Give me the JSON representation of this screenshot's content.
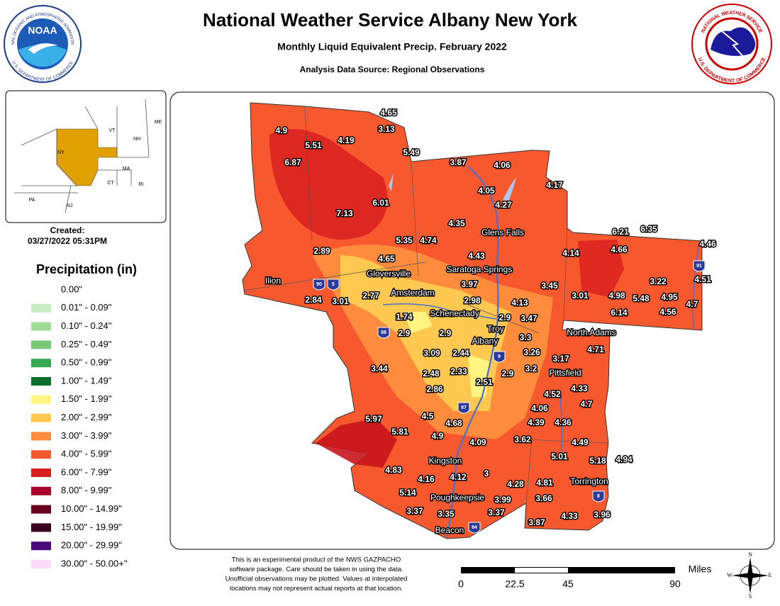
{
  "header": {
    "title": "National Weather Service Albany New York",
    "subtitle": "Monthly Liquid Equivalent Precip. February 2022",
    "source": "Analysis Data Source: Regional Observations"
  },
  "logos": {
    "noaa": "NOAA",
    "noaa_ring_top": "NATIONAL OCEANIC AND ATMOSPHERIC ADMINISTRATION",
    "noaa_ring_bottom": "U.S. DEPARTMENT OF COMMERCE",
    "nws_ring_top": "NATIONAL WEATHER SERVICE",
    "nws_ring_bottom": "U.S. DEPARTMENT OF COMMERCE"
  },
  "inset": {
    "states": [
      "VT",
      "NH",
      "ME",
      "NY",
      "MA",
      "CT",
      "RI",
      "PA",
      "NJ"
    ]
  },
  "created": {
    "label": "Created:",
    "date": "03/27/2022 05:31PM"
  },
  "legend": {
    "title": "Precipitation (in)",
    "items": [
      {
        "label": "0.00\"",
        "color": "#ffffff"
      },
      {
        "label": "0.01\" - 0.09\"",
        "color": "#c8ecc4"
      },
      {
        "label": "0.10\" - 0.24\"",
        "color": "#a0dc98"
      },
      {
        "label": "0.25\" - 0.49\"",
        "color": "#78c878"
      },
      {
        "label": "0.50\" - 0.99\"",
        "color": "#34a852"
      },
      {
        "label": "1.00\" - 1.49\"",
        "color": "#0a6e2c"
      },
      {
        "label": "1.50\" - 1.99\"",
        "color": "#fff580"
      },
      {
        "label": "2.00\" - 2.99\"",
        "color": "#ffc850"
      },
      {
        "label": "3.00\" - 3.99\"",
        "color": "#ff8c3c"
      },
      {
        "label": "4.00\" - 5.99\"",
        "color": "#f8582e"
      },
      {
        "label": "6.00\" - 7.99\"",
        "color": "#d81e1e"
      },
      {
        "label": "8.00\" - 9.99\"",
        "color": "#a8002a"
      },
      {
        "label": "10.00\" - 14.99\"",
        "color": "#6a0020"
      },
      {
        "label": "15.00\" - 19.99\"",
        "color": "#3a0020"
      },
      {
        "label": "20.00\" - 29.99\"",
        "color": "#4a0a78"
      },
      {
        "label": "30.00\" - 50.00+\"",
        "color": "#fadcf8"
      }
    ]
  },
  "stations": [
    4.65,
    3.13,
    4.9,
    5.51,
    4.19,
    5.49,
    6.87,
    3.87,
    4.06,
    4.17,
    4.05,
    6.01,
    4.27,
    7.13,
    4.35,
    5.35,
    4.74,
    6.21,
    6.35,
    4.66,
    4.46,
    2.89,
    4.14,
    4.65,
    4.43,
    3.97,
    3.22,
    4.51,
    3.45,
    2.77,
    2.84,
    3.01,
    3.01,
    4.98,
    5.48,
    4.95,
    2.98,
    4.13,
    4.7,
    6.14,
    4.56,
    1.74,
    2.9,
    3.47,
    2.9,
    2.9,
    3.3,
    4.71,
    3.09,
    2.44,
    3.26,
    3.17,
    3.44,
    2.48,
    2.33,
    2.9,
    3.2,
    2.86,
    2.51,
    4.52,
    4.33,
    4.06,
    4.7,
    5.97,
    4.5,
    4.39,
    4.36,
    5.81,
    4.68,
    4.9,
    4.09,
    3.62,
    4.49,
    5.01,
    5.18,
    4.94,
    4.83,
    4.16,
    4.12,
    3,
    4.28,
    4.81,
    5.14,
    3.99,
    3.66,
    3.37,
    3.35,
    3.37,
    4.33,
    3.96,
    3.87
  ],
  "cities": [
    "Glens Falls",
    "Saratoga Springs",
    "Gloversville",
    "Ilion",
    "Amsterdam",
    "Schenectady",
    "Troy",
    "Albany",
    "North Adams",
    "Pittsfield",
    "Kingston",
    "Torrington",
    "Poughkeepsie",
    "Beacon"
  ],
  "highways": [
    "90",
    "5",
    "88",
    "9",
    "87",
    "84",
    "91",
    "8"
  ],
  "footnote": [
    "This is an experimental product of the NWS GAZPACHO",
    "software package. Care should be taken in using the data.",
    "Unofficial observations may be plotted. Values at interpolated",
    "locations may not represent actual reports at that location."
  ],
  "scale": {
    "ticks": [
      "0",
      "22.5",
      "45",
      "90"
    ],
    "unit": "Miles"
  },
  "compass": [
    "N",
    "E",
    "S",
    "W"
  ]
}
